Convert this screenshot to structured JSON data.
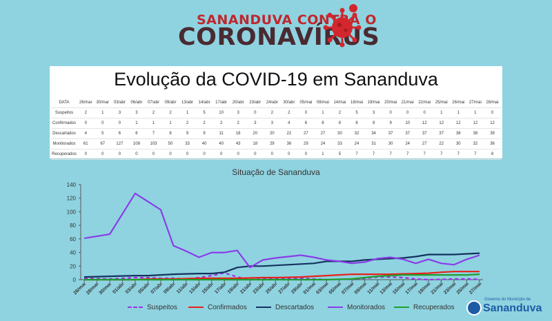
{
  "banner": {
    "line1": "SANANDUVA CONTRA O",
    "line2": "CORONAVÍRUS",
    "virus_icon": "coronavirus-icon",
    "colors": {
      "red": "#c0262d",
      "dark": "#4a2a31"
    }
  },
  "table": {
    "title": "Evolução da COVID-19 em Sananduva",
    "header_label": "DATA",
    "dates": [
      "26/mar",
      "30/mar",
      "03/abr",
      "06/abr",
      "07/abr",
      "09/abr",
      "13/abr",
      "14/abr",
      "17/abr",
      "20/abr",
      "23/abr",
      "24/abr",
      "30/abr",
      "05/mai",
      "08/mai",
      "14/mai",
      "18/mai",
      "19/mai",
      "20/mai",
      "21/mai",
      "22/mai",
      "25/mai",
      "26/mai",
      "27/mai",
      "28/mai"
    ],
    "rows": [
      {
        "label": "Suspeitos",
        "values": [
          2,
          1,
          3,
          3,
          2,
          2,
          1,
          5,
          10,
          3,
          0,
          2,
          2,
          0,
          1,
          2,
          5,
          3,
          0,
          0,
          0,
          1,
          1,
          1,
          0
        ]
      },
      {
        "label": "Confirmados",
        "values": [
          0,
          0,
          0,
          1,
          1,
          1,
          2,
          2,
          2,
          2,
          3,
          3,
          4,
          6,
          8,
          8,
          8,
          9,
          9,
          10,
          12,
          12,
          12,
          12,
          12
        ]
      },
      {
        "label": "Descartados",
        "values": [
          4,
          5,
          6,
          6,
          7,
          8,
          9,
          9,
          11,
          18,
          20,
          20,
          22,
          27,
          27,
          30,
          32,
          34,
          37,
          37,
          37,
          37,
          38,
          38,
          39
        ]
      },
      {
        "label": "Monitorados",
        "values": [
          61,
          67,
          127,
          108,
          103,
          50,
          33,
          40,
          40,
          43,
          18,
          29,
          36,
          29,
          24,
          33,
          24,
          31,
          30,
          24,
          27,
          22,
          30,
          32,
          36
        ]
      },
      {
        "label": "Recuperados",
        "values": [
          0,
          0,
          0,
          0,
          0,
          0,
          0,
          0,
          0,
          0,
          0,
          0,
          0,
          0,
          1,
          5,
          7,
          7,
          7,
          7,
          7,
          7,
          7,
          7,
          8
        ]
      }
    ]
  },
  "chart_data": {
    "type": "line",
    "title": "Situação de Sananduva",
    "xlabel": "",
    "ylabel": "",
    "ylim": [
      0,
      140
    ],
    "yticks": [
      0,
      20,
      40,
      60,
      80,
      100,
      120,
      140
    ],
    "grid": false,
    "legend": "bottom",
    "x": [
      "26/mar",
      "28/mar",
      "30/mar",
      "01/abr",
      "03/abr",
      "05/abr",
      "07/abr",
      "09/abr",
      "11/abr",
      "13/abr",
      "15/abr",
      "17/abr",
      "19/abr",
      "21/abr",
      "23/abr",
      "25/abr",
      "27/abr",
      "29/abr",
      "01/mai",
      "03/mai",
      "05/mai",
      "07/mai",
      "09/mai",
      "11/mai",
      "13/mai",
      "15/mai",
      "17/mai",
      "19/mai",
      "21/mai",
      "23/mai",
      "25/mai",
      "27/mai"
    ],
    "series": [
      {
        "name": "Suspeitos",
        "color": "#9b30e8",
        "dashed": true,
        "values": [
          2,
          1.5,
          1,
          2,
          3,
          3,
          2,
          2,
          1,
          3,
          6,
          10,
          4,
          0,
          1,
          2,
          2,
          2,
          1,
          0,
          0.5,
          1,
          2,
          4,
          4,
          3,
          1,
          0,
          0.5,
          1,
          1,
          0.5
        ]
      },
      {
        "name": "Confirmados",
        "color": "#e8211a",
        "dashed": false,
        "values": [
          0,
          0,
          0,
          0,
          0,
          1,
          1,
          1,
          1.5,
          2,
          2,
          2,
          2,
          2.5,
          3,
          3,
          3.5,
          4,
          5,
          6,
          7,
          8,
          8,
          8,
          8,
          8.5,
          9,
          9.5,
          11,
          12,
          12,
          12
        ]
      },
      {
        "name": "Descartados",
        "color": "#14325e",
        "dashed": false,
        "values": [
          4,
          4.5,
          5,
          5.5,
          6,
          6,
          7,
          8,
          8.5,
          9,
          9,
          11,
          18,
          20,
          20,
          21,
          22,
          23,
          24,
          27,
          27,
          27,
          29,
          30,
          31,
          32,
          34,
          37,
          37,
          37,
          38,
          39
        ]
      },
      {
        "name": "Monitorados",
        "color": "#8a3ce8",
        "dashed": false,
        "values": [
          61,
          64,
          67,
          97,
          127,
          115,
          103,
          50,
          42,
          33,
          40,
          40,
          43,
          18,
          29,
          32,
          34,
          36,
          33,
          29,
          27,
          24,
          26,
          31,
          33,
          30,
          24,
          30,
          24,
          22,
          30,
          36
        ]
      },
      {
        "name": "Recuperados",
        "color": "#1e9e2e",
        "dashed": false,
        "values": [
          0,
          0,
          0,
          0,
          0,
          0,
          0,
          0,
          0,
          0,
          0,
          0,
          0,
          0,
          0,
          0,
          0,
          0,
          0,
          0,
          0.5,
          1,
          3,
          5,
          6,
          7,
          7,
          7,
          7,
          7,
          7,
          8
        ]
      }
    ]
  },
  "logo": {
    "small_text": "Governo do Município de",
    "big_text": "Sananduva",
    "icon": "municipal-crest-icon"
  }
}
